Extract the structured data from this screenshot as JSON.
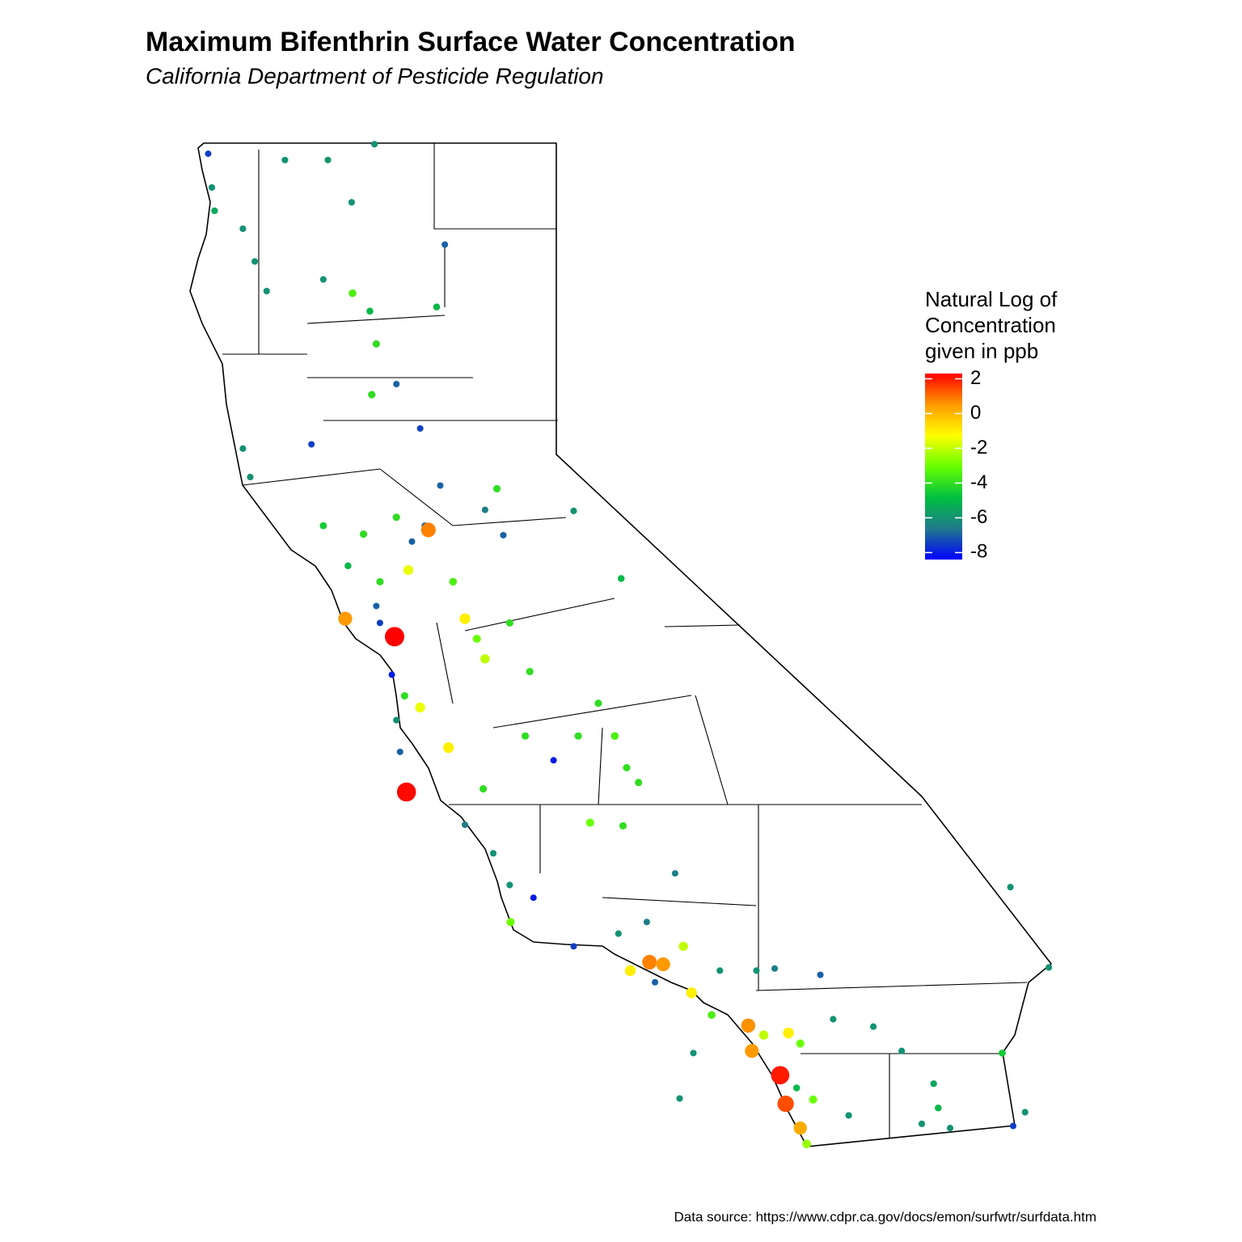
{
  "chart_data": {
    "type": "map",
    "title": "Maximum Bifenthrin Surface Water Concentration",
    "subtitle": "California Department of Pesticide Regulation",
    "caption": "Data source: https://www.cdpr.ca.gov/docs/emon/surfwtr/surfdata.htm",
    "legend_title": [
      "Natural Log of",
      "Concentration",
      "given in ppb"
    ],
    "x": [
      -123.81,
      -123.77,
      -123.74,
      -123.43,
      -122.97,
      -122.5,
      -121.99,
      -122.24,
      -123.3,
      -123.17,
      -122.55,
      -122.23,
      -122.04,
      -121.22,
      -121.31,
      -121.97,
      -121.75,
      -122.02,
      -121.49,
      -122.68,
      -123.43,
      -123.35,
      -121.27,
      -121.44,
      -121.4,
      -121.58,
      -121.62,
      -121.75,
      -122.11,
      -122.55,
      -122.28,
      -121.93,
      -121.13,
      -120.78,
      -120.65,
      -122.31,
      -121.77,
      -121.93,
      -121.97,
      -121.0,
      -120.87,
      -120.78,
      -120.51,
      -120.29,
      -121.49,
      -121.8,
      -121.66,
      -121.75,
      -121.71,
      -121.64,
      -121.18,
      -120.8,
      -120.34,
      -120.03,
      -119.76,
      -119.54,
      -119.36,
      -119.23,
      -119.1,
      -119.63,
      -119.27,
      -119.81,
      -120.58,
      -119.29,
      -121.0,
      -120.69,
      -120.51,
      -120.25,
      -120.5,
      -118.7,
      -119.81,
      -119.32,
      -119.01,
      -118.61,
      -119.19,
      -118.98,
      -118.83,
      -118.92,
      -118.52,
      -118.21,
      -117.81,
      -117.11,
      -117.9,
      -117.86,
      -117.73,
      -117.46,
      -117.33,
      -117.55,
      -117.49,
      -117.37,
      -117.19,
      -117.33,
      -117.26,
      -116.8,
      -116.97,
      -116.53,
      -116.22,
      -115.87,
      -115.82,
      -116.0,
      -115.69,
      -115.12,
      -114.87,
      -115.0,
      -115.03,
      -114.61,
      -118.65,
      -118.5,
      -118.3,
      -117.61
    ],
    "y": [
      41.9,
      41.58,
      41.36,
      41.19,
      41.84,
      41.84,
      41.99,
      41.44,
      40.88,
      40.6,
      40.71,
      40.58,
      40.41,
      41.04,
      40.45,
      40.1,
      39.72,
      39.62,
      39.3,
      39.15,
      39.11,
      38.84,
      38.76,
      38.38,
      38.34,
      38.23,
      37.96,
      38.46,
      38.3,
      38.38,
      38.0,
      37.85,
      37.85,
      38.53,
      38.73,
      37.5,
      37.33,
      37.46,
      37.62,
      37.5,
      37.31,
      37.12,
      37.46,
      37.0,
      36.66,
      36.97,
      36.77,
      36.54,
      36.24,
      35.86,
      36.28,
      35.89,
      36.39,
      36.16,
      36.39,
      36.7,
      36.39,
      36.09,
      35.95,
      35.57,
      35.54,
      38.52,
      38.29,
      37.88,
      35.55,
      35.28,
      34.98,
      34.86,
      34.63,
      35.09,
      34.4,
      34.52,
      34.63,
      34.4,
      34.17,
      34.25,
      34.23,
      34.06,
      33.96,
      34.17,
      34.17,
      34.13,
      33.65,
      33.41,
      33.56,
      33.58,
      33.48,
      33.18,
      32.91,
      33.06,
      32.95,
      32.68,
      32.53,
      32.8,
      33.71,
      33.64,
      33.41,
      33.1,
      32.87,
      32.72,
      32.68,
      33.39,
      32.83,
      32.7,
      34.96,
      34.2,
      32.96,
      33.39,
      33.75,
      34.19
    ],
    "values": [
      -7.5,
      -6,
      -5.5,
      -6,
      -6,
      -6,
      -6,
      -6,
      -6,
      -6,
      -6,
      -3.5,
      -5,
      -7,
      -5,
      -4,
      -7,
      -4,
      -7.5,
      -7.5,
      -6,
      -6,
      -7,
      -7,
      0.8,
      -7,
      -1.5,
      -4,
      -4,
      -4.5,
      -5,
      -4,
      -3.5,
      -6.5,
      -4,
      0.5,
      2.3,
      -7.5,
      -7,
      -1,
      -3,
      -2,
      -4,
      -4,
      -1.5,
      -8,
      -4,
      -6,
      -7,
      2.2,
      -1,
      -4,
      -4,
      -8,
      -4,
      -4,
      -3.5,
      -4,
      -4,
      -3,
      -4,
      -6,
      -7,
      -5,
      -6.5,
      -6,
      -6,
      -8,
      -3,
      -6.5,
      -7.5,
      -6,
      -6.5,
      -2,
      -1,
      0.8,
      0.5,
      -7,
      -1,
      -6,
      -6,
      -7,
      0.6,
      0.5,
      -2,
      -1,
      -3,
      2,
      1.4,
      -5,
      -3,
      0.2,
      -2.5,
      -6,
      -6,
      -6,
      -6,
      -5.5,
      -5,
      -6,
      -6,
      -4.5,
      -6,
      -7.5,
      -6,
      -6,
      -6,
      -6,
      -3.5,
      -6.5
    ],
    "colorlim": [
      -8.4,
      2.3
    ],
    "colorticks": [
      2,
      0,
      -2,
      -4,
      -6,
      -8
    ],
    "colors": [
      "#0000ff",
      "#1f7a8c",
      "#00c040",
      "#66ff00",
      "#ffff00",
      "#ff9900",
      "#ff0000"
    ]
  }
}
